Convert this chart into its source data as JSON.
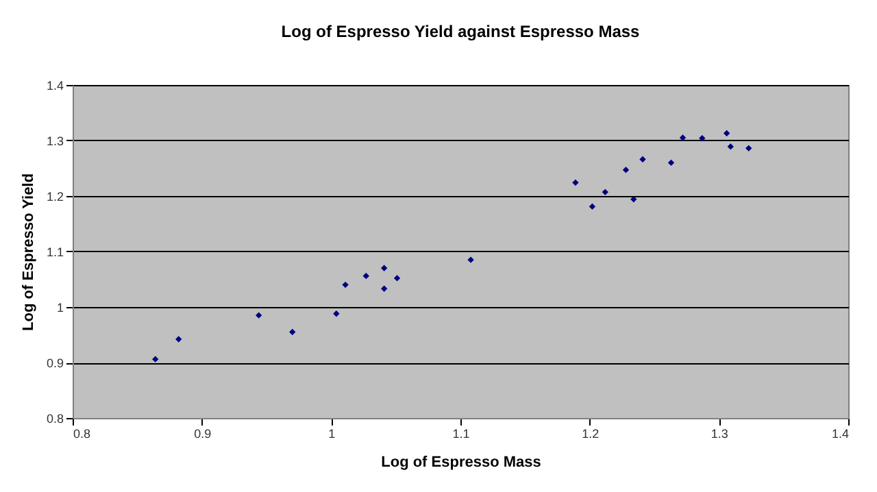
{
  "chart_data": {
    "type": "scatter",
    "title": "Log of Espresso Yield against Espresso Mass",
    "xlabel": "Log of Espresso Mass",
    "ylabel": "Log of Espresso Yield",
    "x": [
      0.864,
      0.882,
      0.944,
      0.97,
      1.004,
      1.011,
      1.027,
      1.041,
      1.041,
      1.051,
      1.108,
      1.189,
      1.202,
      1.212,
      1.228,
      1.234,
      1.241,
      1.263,
      1.272,
      1.287,
      1.306,
      1.309,
      1.323
    ],
    "series": [
      {
        "color": "#000080",
        "values": [
          0.906,
          0.942,
          0.985,
          0.955,
          0.988,
          1.04,
          1.056,
          1.07,
          1.033,
          1.052,
          1.085,
          1.224,
          1.181,
          1.207,
          1.247,
          1.194,
          1.266,
          1.26,
          1.305,
          1.304,
          1.313,
          1.289,
          1.286
        ]
      }
    ],
    "xlim": [
      0.8,
      1.4
    ],
    "xticks": [
      0.8,
      0.9,
      1,
      1.1,
      1.2,
      1.3,
      1.4
    ],
    "ylim": [
      0.8,
      1.4
    ],
    "yticks": [
      0.8,
      0.9,
      1,
      1.1,
      1.2,
      1.3,
      1.4
    ],
    "grid": "y",
    "marker": "diamond"
  }
}
